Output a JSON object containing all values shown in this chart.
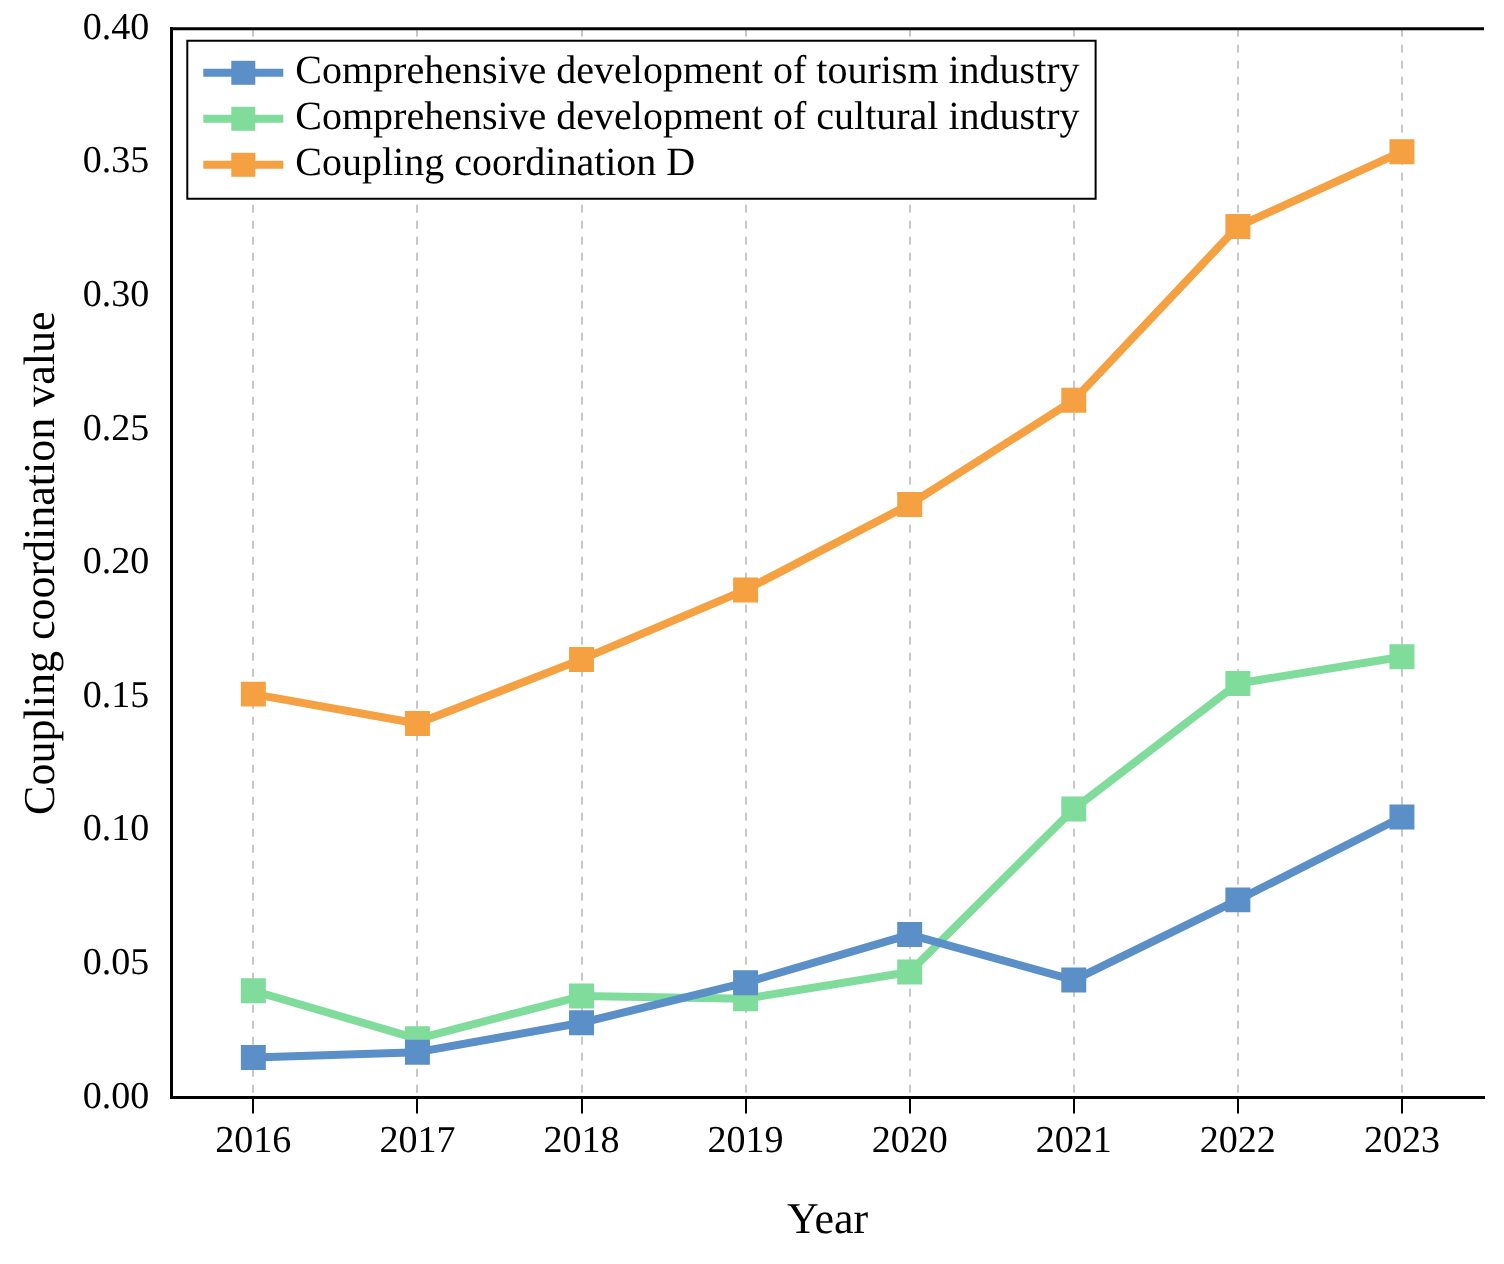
{
  "chart_data": {
    "type": "line",
    "xlabel": "Year",
    "ylabel": "Coupling coordination value",
    "categories": [
      "2016",
      "2017",
      "2018",
      "2019",
      "2020",
      "2021",
      "2022",
      "2023"
    ],
    "series": [
      {
        "name": "Comprehensive development of tourism industry",
        "color": "#5b8fc7",
        "values": [
          0.015,
          0.017,
          0.028,
          0.043,
          0.061,
          0.044,
          0.074,
          0.105
        ]
      },
      {
        "name": "Comprehensive development of cultural industry",
        "color": "#7fdc9a",
        "values": [
          0.04,
          0.022,
          0.038,
          0.037,
          0.047,
          0.108,
          0.155,
          0.165
        ]
      },
      {
        "name": "Coupling coordination D",
        "color": "#f5a142",
        "values": [
          0.151,
          0.14,
          0.164,
          0.19,
          0.222,
          0.261,
          0.326,
          0.354
        ]
      }
    ],
    "ylim": [
      0,
      0.4
    ],
    "yticks": [
      {
        "value": 0,
        "label": "0.00"
      },
      {
        "value": 0.05,
        "label": "0.05"
      },
      {
        "value": 0.1,
        "label": "0.10"
      },
      {
        "value": 0.15,
        "label": "0.15"
      },
      {
        "value": 0.2,
        "label": "0.20"
      },
      {
        "value": 0.25,
        "label": "0.25"
      },
      {
        "value": 0.3,
        "label": "0.30"
      },
      {
        "value": 0.35,
        "label": "0.35"
      },
      {
        "value": 0.4,
        "label": "0.40"
      }
    ],
    "grid": "x",
    "legend": "top left",
    "marker": "square",
    "line_style": "solid"
  }
}
